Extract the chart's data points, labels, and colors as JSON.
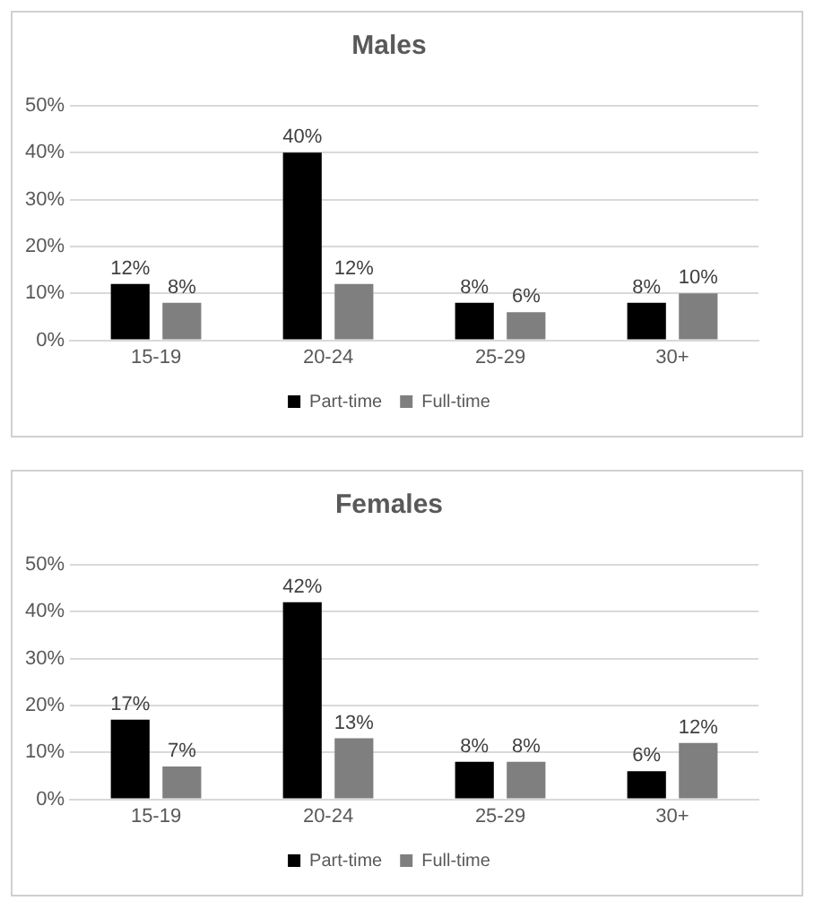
{
  "chart_data": [
    {
      "type": "bar",
      "title": "Males",
      "categories": [
        "15-19",
        "20-24",
        "25-29",
        "30+"
      ],
      "series": [
        {
          "name": "Part-time",
          "color": "#000000",
          "values": [
            12,
            40,
            8,
            8
          ],
          "value_labels": [
            "12%",
            "40%",
            "8%",
            "8%"
          ]
        },
        {
          "name": "Full-time",
          "color": "#7f7f7f",
          "values": [
            8,
            12,
            6,
            10
          ],
          "value_labels": [
            "8%",
            "12%",
            "6%",
            "10%"
          ]
        }
      ],
      "ylim": [
        0,
        50
      ],
      "yticks": [
        {
          "value": 0,
          "label": "0%"
        },
        {
          "value": 10,
          "label": "10%"
        },
        {
          "value": 20,
          "label": "20%"
        },
        {
          "value": 30,
          "label": "30%"
        },
        {
          "value": 40,
          "label": "40%"
        },
        {
          "value": 50,
          "label": "50%"
        }
      ],
      "grid": "y",
      "legend": "bottom"
    },
    {
      "type": "bar",
      "title": "Females",
      "categories": [
        "15-19",
        "20-24",
        "25-29",
        "30+"
      ],
      "series": [
        {
          "name": "Part-time",
          "color": "#000000",
          "values": [
            17,
            42,
            8,
            6
          ],
          "value_labels": [
            "17%",
            "42%",
            "8%",
            "6%"
          ]
        },
        {
          "name": "Full-time",
          "color": "#7f7f7f",
          "values": [
            7,
            13,
            8,
            12
          ],
          "value_labels": [
            "7%",
            "13%",
            "8%",
            "12%"
          ]
        }
      ],
      "ylim": [
        0,
        50
      ],
      "yticks": [
        {
          "value": 0,
          "label": "0%"
        },
        {
          "value": 10,
          "label": "10%"
        },
        {
          "value": 20,
          "label": "20%"
        },
        {
          "value": 30,
          "label": "30%"
        },
        {
          "value": 40,
          "label": "40%"
        },
        {
          "value": 50,
          "label": "50%"
        }
      ],
      "grid": "y",
      "legend": "bottom"
    }
  ]
}
